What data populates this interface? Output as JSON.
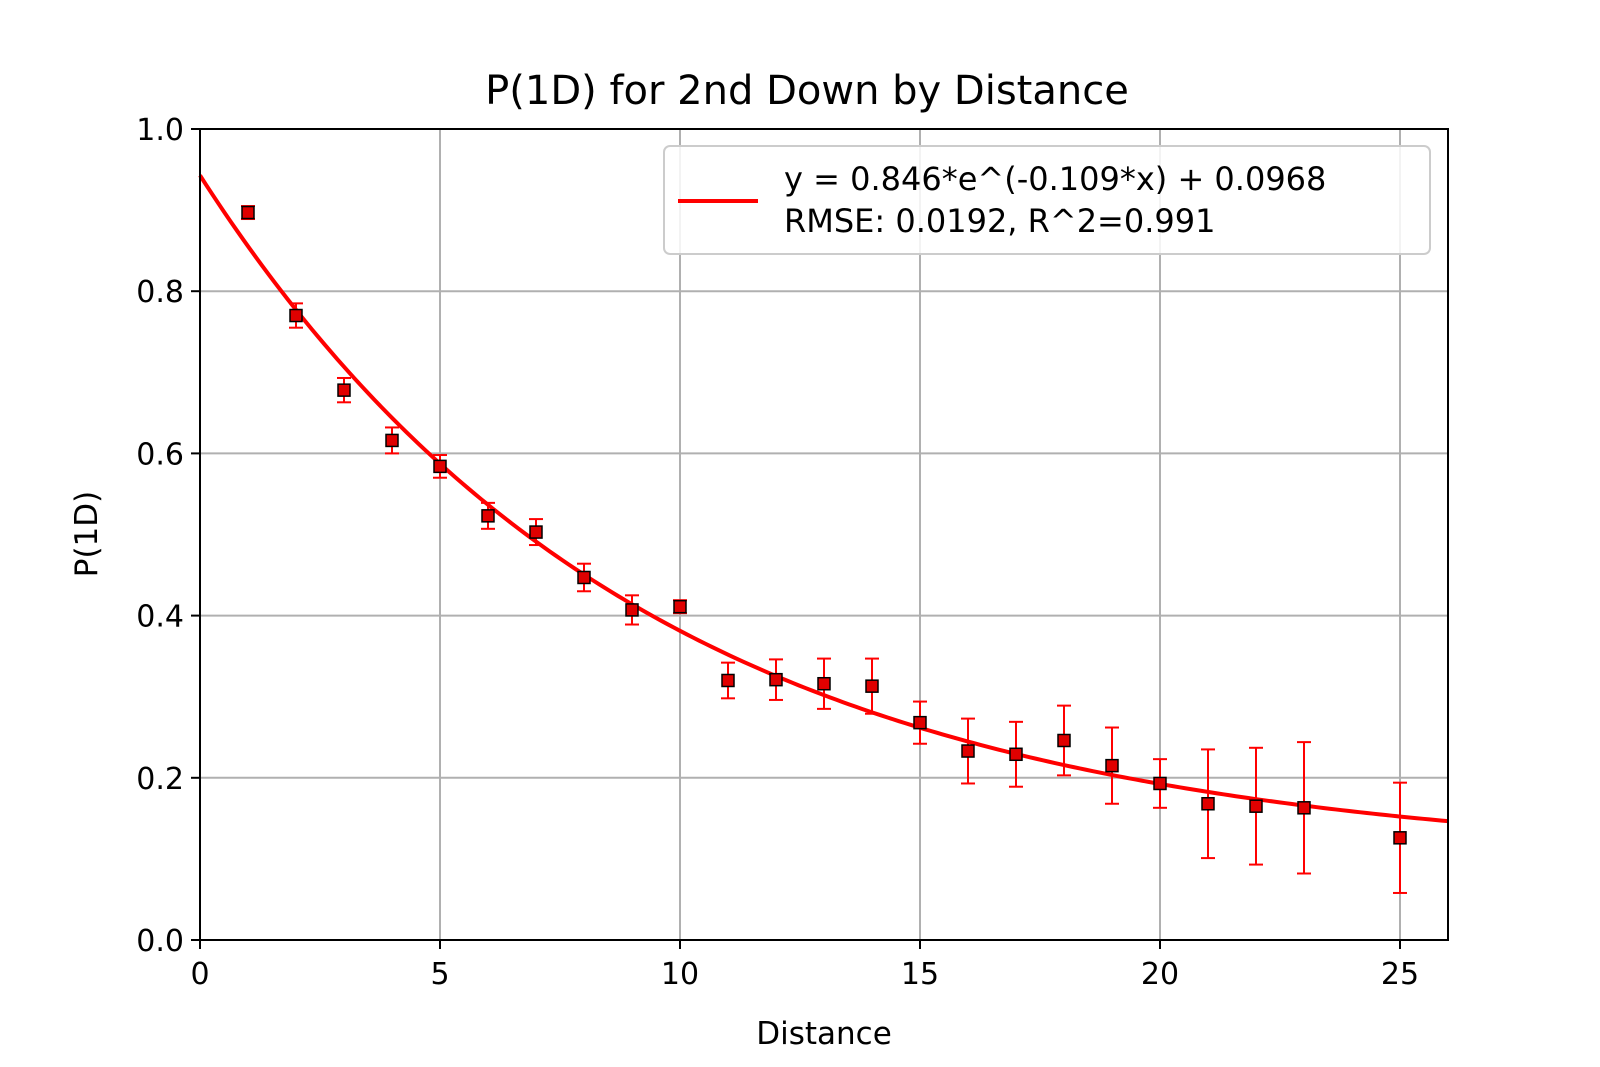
{
  "chart_data": {
    "type": "scatter",
    "title": "P(1D) for 2nd Down by Distance",
    "xlabel": "Distance",
    "ylabel": "P(1D)",
    "xlim": [
      0,
      26
    ],
    "ylim": [
      0,
      1.0
    ],
    "grid": true,
    "x_ticks": [
      0,
      5,
      10,
      15,
      20,
      25
    ],
    "x_tick_labels": [
      "0",
      "5",
      "10",
      "15",
      "20",
      "25"
    ],
    "y_ticks": [
      0.0,
      0.2,
      0.4,
      0.6,
      0.8,
      1.0
    ],
    "y_tick_labels": [
      "0.0",
      "0.2",
      "0.4",
      "0.6",
      "0.8",
      "1.0"
    ],
    "legend_placement": "top-right",
    "colors": {
      "fit": "#ff0000",
      "marker_fill": "#e00000",
      "marker_edge": "#000000",
      "errorbar": "#ff0000",
      "grid": "#b0b0b0"
    },
    "series": [
      {
        "kind": "errorbar",
        "points": [
          {
            "x": 1,
            "y": 0.897,
            "err": 0.008
          },
          {
            "x": 2,
            "y": 0.77,
            "err": 0.015
          },
          {
            "x": 3,
            "y": 0.678,
            "err": 0.015
          },
          {
            "x": 4,
            "y": 0.616,
            "err": 0.016
          },
          {
            "x": 5,
            "y": 0.584,
            "err": 0.014
          },
          {
            "x": 6,
            "y": 0.523,
            "err": 0.016
          },
          {
            "x": 7,
            "y": 0.503,
            "err": 0.016
          },
          {
            "x": 8,
            "y": 0.447,
            "err": 0.017
          },
          {
            "x": 9,
            "y": 0.407,
            "err": 0.018
          },
          {
            "x": 10,
            "y": 0.411,
            "err": 0.008
          },
          {
            "x": 11,
            "y": 0.32,
            "err": 0.022
          },
          {
            "x": 12,
            "y": 0.321,
            "err": 0.025
          },
          {
            "x": 13,
            "y": 0.316,
            "err": 0.031
          },
          {
            "x": 14,
            "y": 0.313,
            "err": 0.034
          },
          {
            "x": 15,
            "y": 0.268,
            "err": 0.026
          },
          {
            "x": 16,
            "y": 0.233,
            "err": 0.04
          },
          {
            "x": 17,
            "y": 0.229,
            "err": 0.04
          },
          {
            "x": 18,
            "y": 0.246,
            "err": 0.043
          },
          {
            "x": 19,
            "y": 0.215,
            "err": 0.047
          },
          {
            "x": 20,
            "y": 0.193,
            "err": 0.03
          },
          {
            "x": 21,
            "y": 0.168,
            "err": 0.067
          },
          {
            "x": 22,
            "y": 0.165,
            "err": 0.072
          },
          {
            "x": 23,
            "y": 0.163,
            "err": 0.081
          },
          {
            "x": 25,
            "y": 0.126,
            "err": 0.068
          }
        ]
      },
      {
        "kind": "line",
        "name": "y = 0.846*e^(-0.109*x) + 0.0968",
        "fit": {
          "a": 0.846,
          "b": -0.109,
          "c": 0.0968
        }
      }
    ],
    "legend_entries": [
      "y = 0.846*e^(-0.109*x) + 0.0968",
      "RMSE: 0.0192, R^2=0.991"
    ]
  }
}
